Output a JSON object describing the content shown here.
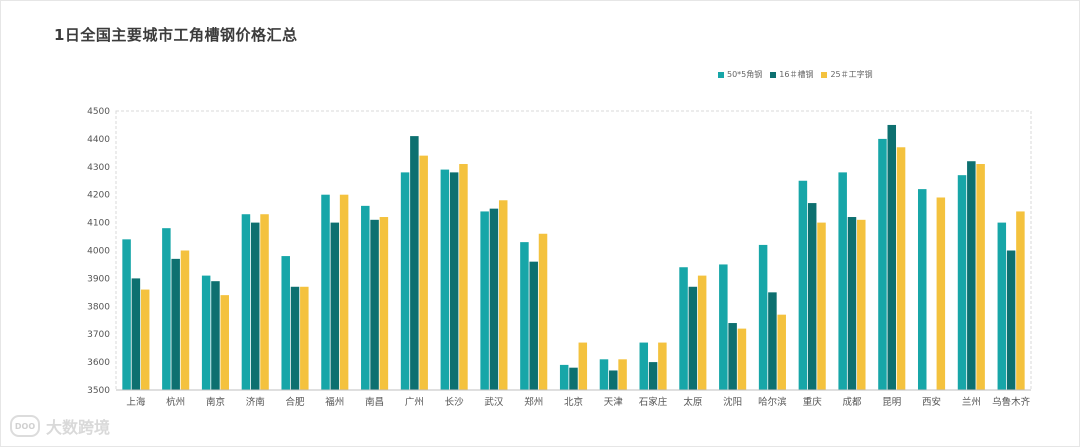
{
  "title": "1日全国主要城市工角槽钢价格汇总",
  "colors": {
    "series1": "#17a6a8",
    "series2": "#0d7070",
    "series3": "#f4c23e"
  },
  "watermark": {
    "icon_text": "DOO",
    "label": "大数跨境"
  },
  "chart_data": {
    "type": "bar",
    "categories": [
      "上海",
      "杭州",
      "南京",
      "济南",
      "合肥",
      "福州",
      "南昌",
      "广州",
      "长沙",
      "武汉",
      "郑州",
      "北京",
      "天津",
      "石家庄",
      "太原",
      "沈阳",
      "哈尔滨",
      "重庆",
      "成都",
      "昆明",
      "西安",
      "兰州",
      "乌鲁木齐"
    ],
    "series": [
      {
        "name": "50*5角钢",
        "values": [
          4040,
          4080,
          3910,
          4130,
          3980,
          4200,
          4160,
          4280,
          4290,
          4140,
          4030,
          3590,
          3610,
          3670,
          3940,
          3950,
          4020,
          4250,
          4280,
          4400,
          4220,
          4270,
          4100
        ]
      },
      {
        "name": "16＃槽钢",
        "values": [
          3900,
          3970,
          3890,
          4100,
          3870,
          4100,
          4110,
          4410,
          4280,
          4150,
          3960,
          3580,
          3570,
          3600,
          3870,
          3740,
          3850,
          4170,
          4120,
          4450,
          null,
          4320,
          4000
        ]
      },
      {
        "name": "25＃工字钢",
        "values": [
          3860,
          4000,
          3840,
          4130,
          3870,
          4200,
          4120,
          4340,
          4310,
          4180,
          4060,
          3670,
          3610,
          3670,
          3910,
          3720,
          3770,
          4100,
          4110,
          4370,
          4190,
          4310,
          4140
        ]
      }
    ],
    "ylim": [
      3500,
      4500
    ],
    "yticks": [
      3500,
      3600,
      3700,
      3800,
      3900,
      4000,
      4100,
      4200,
      4300,
      4400,
      4500
    ],
    "legend_position": "top-right",
    "grid": false
  }
}
